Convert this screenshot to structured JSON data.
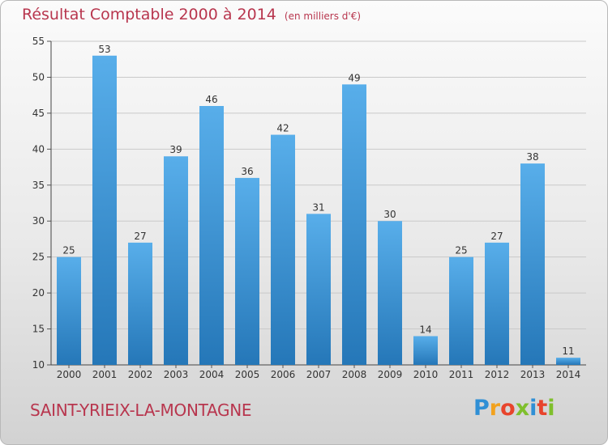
{
  "title": "Résultat Comptable 2000 à 2014",
  "unit": "(en milliers d'€)",
  "commune": "SAINT-YRIEIX-LA-MONTAGNE",
  "logo": {
    "letters": [
      "P",
      "r",
      "o",
      "x",
      "i",
      "t",
      "i"
    ],
    "colors": [
      "#2f8fd5",
      "#f2a21e",
      "#e8442c",
      "#7fbf2c",
      "#2f8fd5",
      "#e8442c",
      "#7fbf2c"
    ]
  },
  "colors": {
    "bar": "#3d9be0",
    "bar_dark": "#2577b8",
    "title": "#b8364e"
  },
  "chart_data": {
    "type": "bar",
    "title": "Résultat Comptable 2000 à 2014",
    "xlabel": "",
    "ylabel": "",
    "categories": [
      "2000",
      "2001",
      "2002",
      "2003",
      "2004",
      "2005",
      "2006",
      "2007",
      "2008",
      "2009",
      "2010",
      "2011",
      "2012",
      "2013",
      "2014"
    ],
    "values": [
      25,
      53,
      27,
      39,
      46,
      36,
      42,
      31,
      49,
      30,
      14,
      25,
      27,
      38,
      11
    ],
    "ylim": [
      10,
      55
    ],
    "yticks": [
      10,
      15,
      20,
      25,
      30,
      35,
      40,
      45,
      50,
      55
    ],
    "grid": true
  }
}
